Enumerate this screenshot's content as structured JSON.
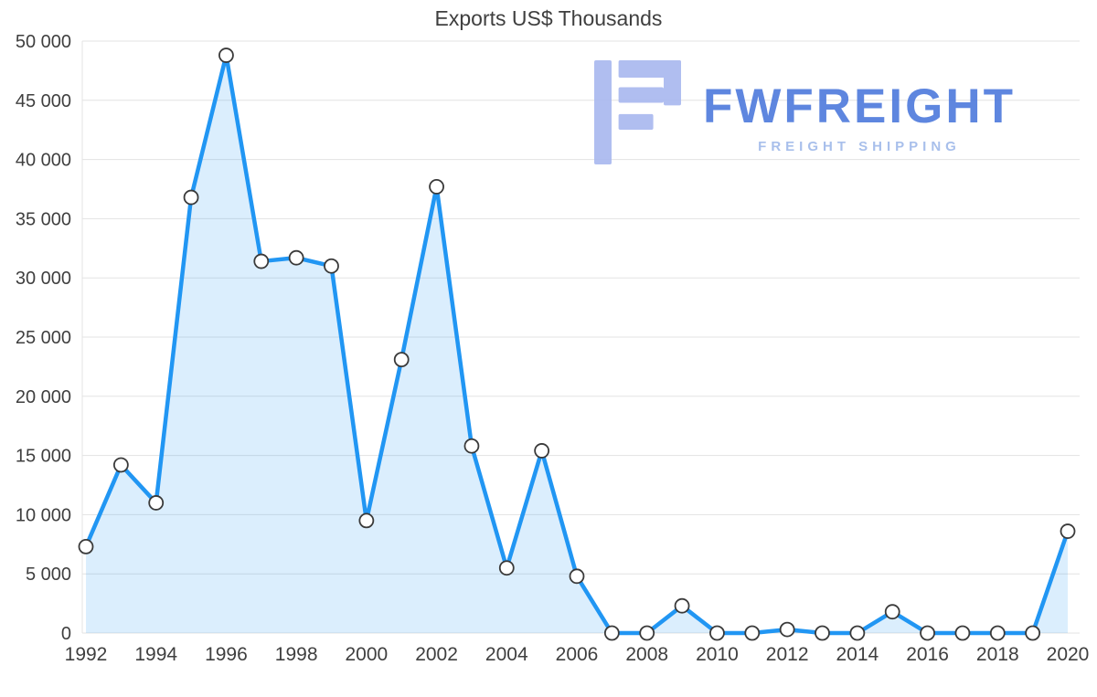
{
  "page": {
    "title": "Exports US$ Thousands"
  },
  "watermark": {
    "brand": "FWFREIGHT",
    "tagline": "FREIGHT SHIPPING"
  },
  "colors": {
    "line": "#2196f3",
    "area_fill": "#2196f3",
    "area_opacity": "0.16",
    "marker_fill": "#ffffff",
    "marker_stroke": "#3a3a3a",
    "grid": "#e3e3e3",
    "axis_text": "#3f3f3f",
    "title_text": "#3f3f3f",
    "watermark_glyph": "#a8b8ef",
    "watermark_brand": "#4d79dc",
    "watermark_tagline": "#9fb9e9"
  },
  "chart_data": {
    "type": "line",
    "title": "Exports US$ Thousands",
    "x": [
      1992,
      1993,
      1994,
      1995,
      1996,
      1997,
      1998,
      1999,
      2000,
      2001,
      2002,
      2003,
      2004,
      2005,
      2006,
      2007,
      2008,
      2009,
      2010,
      2011,
      2012,
      2013,
      2014,
      2015,
      2016,
      2017,
      2018,
      2019,
      2020
    ],
    "series": [
      {
        "name": "Exports US$ Thousands",
        "values": [
          7300,
          14200,
          11000,
          36800,
          48800,
          31400,
          31700,
          31000,
          9500,
          23100,
          37700,
          15800,
          5500,
          15400,
          4800,
          0,
          0,
          2300,
          0,
          0,
          300,
          0,
          0,
          1800,
          0,
          0,
          0,
          0,
          8600
        ]
      }
    ],
    "ylim": [
      0,
      50000
    ],
    "ytick_step": 5000,
    "ytick_labels": [
      "0",
      "5 000",
      "10 000",
      "15 000",
      "20 000",
      "25 000",
      "30 000",
      "35 000",
      "40 000",
      "45 000",
      "50 000"
    ],
    "xtick_step": 2,
    "xtick_labels": [
      "1992",
      "1994",
      "1996",
      "1998",
      "2000",
      "2002",
      "2004",
      "2006",
      "2008",
      "2010",
      "2012",
      "2014",
      "2016",
      "2018",
      "2020"
    ],
    "grid": true,
    "area_fill": true,
    "markers": true,
    "legend": "none"
  }
}
